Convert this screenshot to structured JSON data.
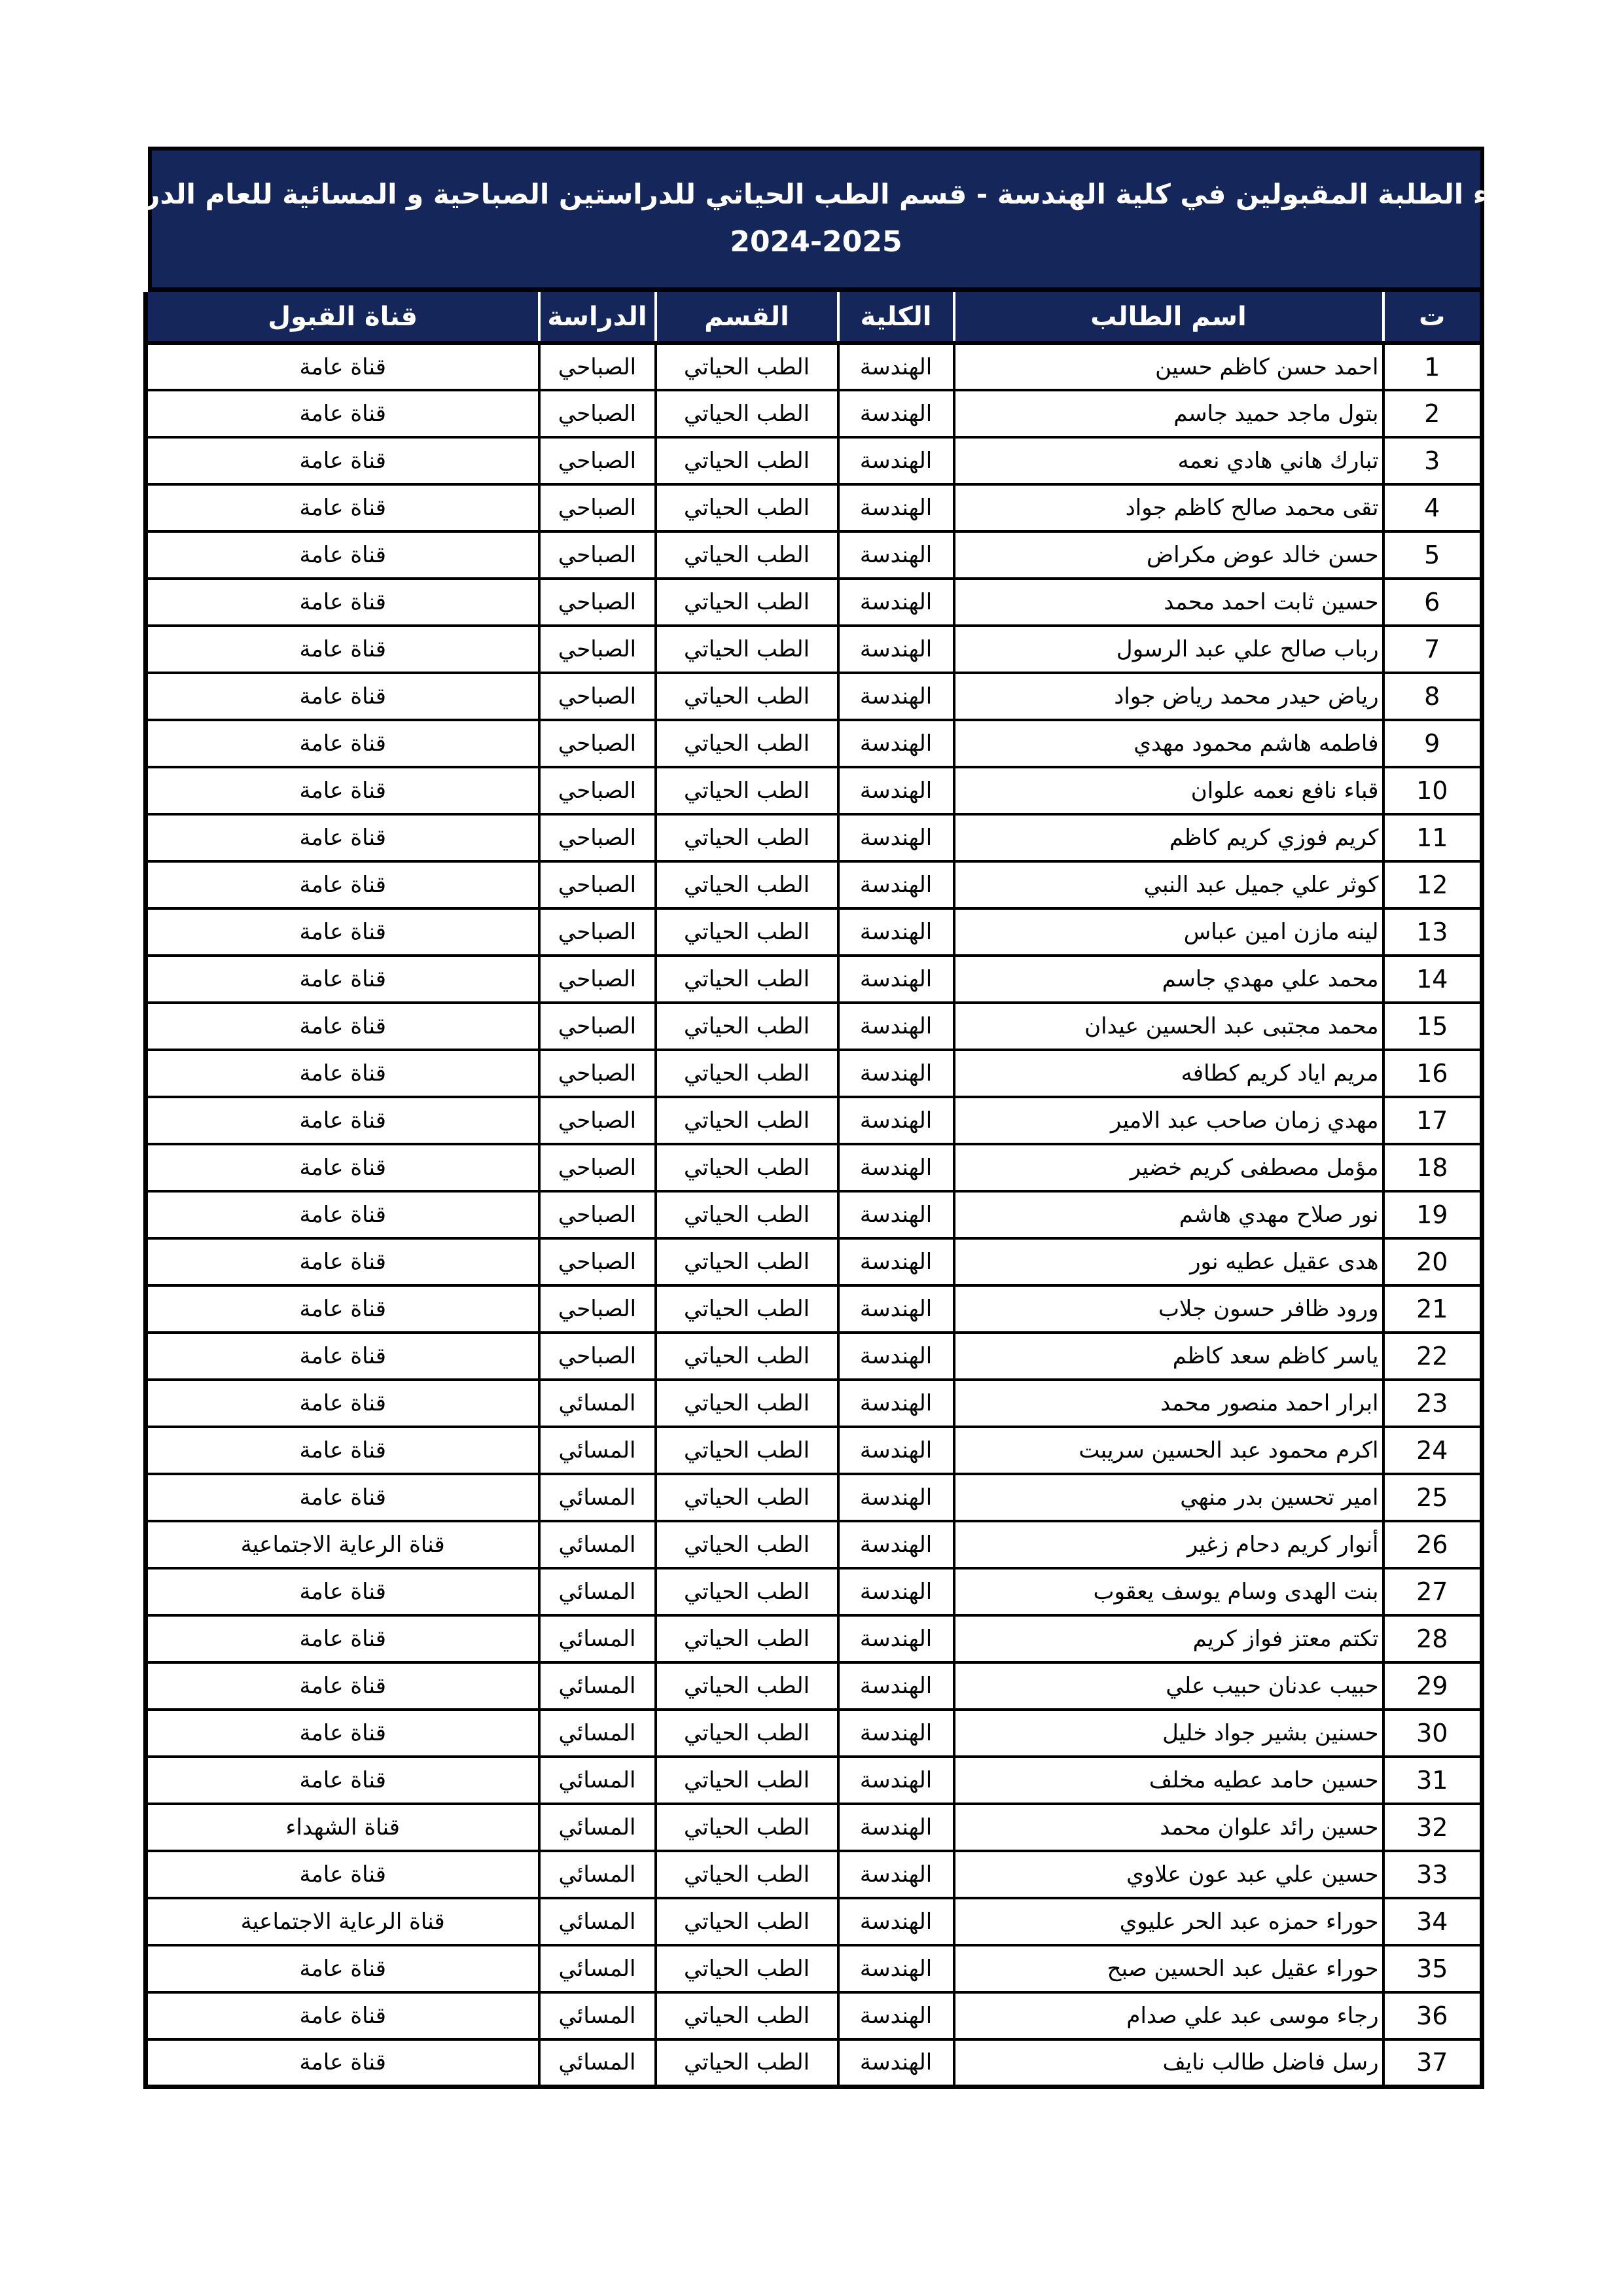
{
  "document": {
    "title_line1": "اسماء الطلبة المقبولين في كلية الهندسة - قسم الطب الحياتي للدراستين الصباحية و المسائية للعام الدراسي",
    "title_line2": "2024-2025"
  },
  "colors": {
    "header_bg": "#14265a",
    "header_text": "#ffffff",
    "border": "#000000",
    "body_bg": "#ffffff",
    "body_text": "#000000"
  },
  "table": {
    "headers": {
      "index": "ت",
      "name": "اسم الطالب",
      "college": "الكلية",
      "department": "القسم",
      "study": "الدراسة",
      "channel": "قناة القبول"
    },
    "rows": [
      {
        "index": "1",
        "name": "احمد حسن كاظم حسين",
        "college": "الهندسة",
        "department": "الطب الحياتي",
        "study": "الصباحي",
        "channel": "قناة عامة"
      },
      {
        "index": "2",
        "name": "بتول ماجد حميد جاسم",
        "college": "الهندسة",
        "department": "الطب الحياتي",
        "study": "الصباحي",
        "channel": "قناة عامة"
      },
      {
        "index": "3",
        "name": "تبارك هاني هادي نعمه",
        "college": "الهندسة",
        "department": "الطب الحياتي",
        "study": "الصباحي",
        "channel": "قناة عامة"
      },
      {
        "index": "4",
        "name": "تقى محمد صالح كاظم جواد",
        "college": "الهندسة",
        "department": "الطب الحياتي",
        "study": "الصباحي",
        "channel": "قناة عامة"
      },
      {
        "index": "5",
        "name": "حسن خالد عوض مكراض",
        "college": "الهندسة",
        "department": "الطب الحياتي",
        "study": "الصباحي",
        "channel": "قناة عامة"
      },
      {
        "index": "6",
        "name": "حسين ثابت احمد محمد",
        "college": "الهندسة",
        "department": "الطب الحياتي",
        "study": "الصباحي",
        "channel": "قناة عامة"
      },
      {
        "index": "7",
        "name": "رباب صالح علي عبد الرسول",
        "college": "الهندسة",
        "department": "الطب الحياتي",
        "study": "الصباحي",
        "channel": "قناة عامة"
      },
      {
        "index": "8",
        "name": "رياض حيدر محمد رياض جواد",
        "college": "الهندسة",
        "department": "الطب الحياتي",
        "study": "الصباحي",
        "channel": "قناة عامة"
      },
      {
        "index": "9",
        "name": "فاطمه هاشم محمود مهدي",
        "college": "الهندسة",
        "department": "الطب الحياتي",
        "study": "الصباحي",
        "channel": "قناة عامة"
      },
      {
        "index": "10",
        "name": "قباء نافع نعمه علوان",
        "college": "الهندسة",
        "department": "الطب الحياتي",
        "study": "الصباحي",
        "channel": "قناة عامة"
      },
      {
        "index": "11",
        "name": "كريم فوزي كريم كاظم",
        "college": "الهندسة",
        "department": "الطب الحياتي",
        "study": "الصباحي",
        "channel": "قناة عامة"
      },
      {
        "index": "12",
        "name": "كوثر علي جميل عبد النبي",
        "college": "الهندسة",
        "department": "الطب الحياتي",
        "study": "الصباحي",
        "channel": "قناة عامة"
      },
      {
        "index": "13",
        "name": "لينه مازن امين عباس",
        "college": "الهندسة",
        "department": "الطب الحياتي",
        "study": "الصباحي",
        "channel": "قناة عامة"
      },
      {
        "index": "14",
        "name": "محمد علي مهدي جاسم",
        "college": "الهندسة",
        "department": "الطب الحياتي",
        "study": "الصباحي",
        "channel": "قناة عامة"
      },
      {
        "index": "15",
        "name": "محمد مجتبى عبد الحسين عيدان",
        "college": "الهندسة",
        "department": "الطب الحياتي",
        "study": "الصباحي",
        "channel": "قناة عامة"
      },
      {
        "index": "16",
        "name": "مريم اياد كريم كطافه",
        "college": "الهندسة",
        "department": "الطب الحياتي",
        "study": "الصباحي",
        "channel": "قناة عامة"
      },
      {
        "index": "17",
        "name": "مهدي زمان صاحب عبد الامير",
        "college": "الهندسة",
        "department": "الطب الحياتي",
        "study": "الصباحي",
        "channel": "قناة عامة"
      },
      {
        "index": "18",
        "name": "مؤمل مصطفى كريم خضير",
        "college": "الهندسة",
        "department": "الطب الحياتي",
        "study": "الصباحي",
        "channel": "قناة عامة"
      },
      {
        "index": "19",
        "name": "نور صلاح مهدي هاشم",
        "college": "الهندسة",
        "department": "الطب الحياتي",
        "study": "الصباحي",
        "channel": "قناة عامة"
      },
      {
        "index": "20",
        "name": "هدى عقيل عطيه نور",
        "college": "الهندسة",
        "department": "الطب الحياتي",
        "study": "الصباحي",
        "channel": "قناة عامة"
      },
      {
        "index": "21",
        "name": "ورود ظافر حسون جلاب",
        "college": "الهندسة",
        "department": "الطب الحياتي",
        "study": "الصباحي",
        "channel": "قناة عامة"
      },
      {
        "index": "22",
        "name": "ياسر كاظم سعد كاظم",
        "college": "الهندسة",
        "department": "الطب الحياتي",
        "study": "الصباحي",
        "channel": "قناة عامة"
      },
      {
        "index": "23",
        "name": "ابرار احمد منصور محمد",
        "college": "الهندسة",
        "department": "الطب الحياتي",
        "study": "المسائي",
        "channel": "قناة عامة"
      },
      {
        "index": "24",
        "name": "اكرم محمود عبد الحسين سريبت",
        "college": "الهندسة",
        "department": "الطب الحياتي",
        "study": "المسائي",
        "channel": "قناة عامة"
      },
      {
        "index": "25",
        "name": "امير تحسين بدر منهي",
        "college": "الهندسة",
        "department": "الطب الحياتي",
        "study": "المسائي",
        "channel": "قناة عامة"
      },
      {
        "index": "26",
        "name": "أنوار كريم دحام زغير",
        "college": "الهندسة",
        "department": "الطب الحياتي",
        "study": "المسائي",
        "channel": "قناة الرعاية الاجتماعية"
      },
      {
        "index": "27",
        "name": "بنت الهدى وسام يوسف يعقوب",
        "college": "الهندسة",
        "department": "الطب الحياتي",
        "study": "المسائي",
        "channel": "قناة عامة"
      },
      {
        "index": "28",
        "name": "تكتم معتز فواز كريم",
        "college": "الهندسة",
        "department": "الطب الحياتي",
        "study": "المسائي",
        "channel": "قناة عامة"
      },
      {
        "index": "29",
        "name": "حبيب عدنان حبيب علي",
        "college": "الهندسة",
        "department": "الطب الحياتي",
        "study": "المسائي",
        "channel": "قناة عامة"
      },
      {
        "index": "30",
        "name": "حسنين بشير جواد خليل",
        "college": "الهندسة",
        "department": "الطب الحياتي",
        "study": "المسائي",
        "channel": "قناة عامة"
      },
      {
        "index": "31",
        "name": "حسين حامد عطيه مخلف",
        "college": "الهندسة",
        "department": "الطب الحياتي",
        "study": "المسائي",
        "channel": "قناة عامة"
      },
      {
        "index": "32",
        "name": "حسين رائد علوان محمد",
        "college": "الهندسة",
        "department": "الطب الحياتي",
        "study": "المسائي",
        "channel": "قناة الشهداء"
      },
      {
        "index": "33",
        "name": "حسين علي عبد عون علاوي",
        "college": "الهندسة",
        "department": "الطب الحياتي",
        "study": "المسائي",
        "channel": "قناة عامة"
      },
      {
        "index": "34",
        "name": "حوراء حمزه عبد الحر عليوي",
        "college": "الهندسة",
        "department": "الطب الحياتي",
        "study": "المسائي",
        "channel": "قناة الرعاية الاجتماعية"
      },
      {
        "index": "35",
        "name": "حوراء عقيل عبد الحسين صبح",
        "college": "الهندسة",
        "department": "الطب الحياتي",
        "study": "المسائي",
        "channel": "قناة عامة"
      },
      {
        "index": "36",
        "name": "رجاء موسى عبد علي صدام",
        "college": "الهندسة",
        "department": "الطب الحياتي",
        "study": "المسائي",
        "channel": "قناة عامة"
      },
      {
        "index": "37",
        "name": "رسل فاضل طالب نايف",
        "college": "الهندسة",
        "department": "الطب الحياتي",
        "study": "المسائي",
        "channel": "قناة عامة"
      }
    ]
  }
}
